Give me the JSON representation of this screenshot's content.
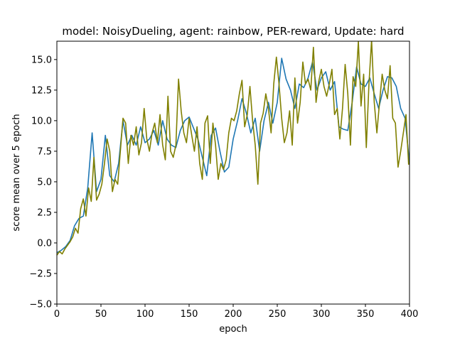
{
  "chart_data": {
    "type": "line",
    "title": "model: NoisyDueling, agent: rainbow, PER-reward, Update: hard",
    "xlabel": "epoch",
    "ylabel": "score mean over 5 epoch",
    "xlim": [
      0,
      400
    ],
    "ylim": [
      -5.0,
      16.5
    ],
    "xticks": [
      0,
      50,
      100,
      150,
      200,
      250,
      300,
      350,
      400
    ],
    "yticks": [
      -5.0,
      -2.5,
      0.0,
      2.5,
      5.0,
      7.5,
      10.0,
      12.5,
      15.0
    ],
    "ytick_labels": [
      "−5.0",
      "−2.5",
      "0.0",
      "2.5",
      "5.0",
      "7.5",
      "10.0",
      "12.5",
      "15.0"
    ],
    "grid": false,
    "legend": "none",
    "series": [
      {
        "color": "#1f77b4",
        "x": [
          0,
          5,
          10,
          15,
          20,
          25,
          30,
          35,
          40,
          45,
          50,
          55,
          60,
          65,
          70,
          75,
          80,
          85,
          90,
          95,
          100,
          105,
          110,
          115,
          120,
          125,
          130,
          135,
          140,
          145,
          150,
          155,
          160,
          165,
          170,
          175,
          180,
          185,
          190,
          195,
          200,
          205,
          210,
          215,
          220,
          225,
          230,
          235,
          240,
          245,
          250,
          255,
          260,
          265,
          270,
          275,
          280,
          285,
          290,
          295,
          300,
          305,
          310,
          315,
          320,
          325,
          330,
          335,
          340,
          345,
          350,
          355,
          360,
          365,
          370,
          375,
          380,
          385,
          390,
          395,
          400
        ],
        "y": [
          -0.8,
          -0.6,
          -0.3,
          0.2,
          1.4,
          2.0,
          2.2,
          4.5,
          9.0,
          4.2,
          5.2,
          8.8,
          5.5,
          5.0,
          6.5,
          10.0,
          8.0,
          8.8,
          8.0,
          9.5,
          8.2,
          8.5,
          9.2,
          8.0,
          10.0,
          8.5,
          8.0,
          7.8,
          9.2,
          10.0,
          10.3,
          9.4,
          8.5,
          7.0,
          5.5,
          8.8,
          9.4,
          7.5,
          5.8,
          6.2,
          8.5,
          10.0,
          11.8,
          10.6,
          9.0,
          10.2,
          7.5,
          10.0,
          11.5,
          9.8,
          11.5,
          15.1,
          13.4,
          12.5,
          11.0,
          13.0,
          12.7,
          13.5,
          14.8,
          12.5,
          13.5,
          14.0,
          12.5,
          13.2,
          9.5,
          9.3,
          9.2,
          11.5,
          14.4,
          13.0,
          12.8,
          13.5,
          12.2,
          11.0,
          12.5,
          13.6,
          13.5,
          12.8,
          11.0,
          10.2,
          6.5
        ]
      },
      {
        "color": "#808000",
        "x": [
          0,
          3,
          6,
          9,
          12,
          15,
          18,
          21,
          24,
          27,
          30,
          33,
          36,
          39,
          42,
          45,
          48,
          51,
          54,
          57,
          60,
          63,
          66,
          69,
          72,
          75,
          78,
          81,
          84,
          87,
          90,
          93,
          96,
          99,
          102,
          105,
          108,
          111,
          114,
          117,
          120,
          123,
          126,
          129,
          132,
          135,
          138,
          141,
          144,
          147,
          150,
          153,
          156,
          159,
          162,
          165,
          168,
          171,
          174,
          177,
          180,
          183,
          186,
          189,
          192,
          195,
          198,
          201,
          204,
          207,
          210,
          213,
          216,
          219,
          222,
          225,
          228,
          231,
          234,
          237,
          240,
          243,
          246,
          249,
          252,
          255,
          258,
          261,
          264,
          267,
          270,
          273,
          276,
          279,
          282,
          285,
          288,
          291,
          294,
          297,
          300,
          303,
          306,
          309,
          312,
          315,
          318,
          321,
          324,
          327,
          330,
          333,
          336,
          339,
          342,
          345,
          348,
          351,
          354,
          357,
          360,
          363,
          366,
          369,
          372,
          375,
          378,
          381,
          384,
          387,
          390,
          393,
          396,
          399
        ],
        "y": [
          -1.0,
          -0.7,
          -0.9,
          -0.5,
          -0.2,
          0.1,
          0.5,
          1.2,
          0.8,
          2.8,
          3.6,
          2.2,
          4.5,
          3.4,
          7.0,
          3.5,
          4.0,
          4.8,
          6.5,
          8.5,
          7.5,
          4.2,
          5.2,
          4.8,
          7.5,
          10.2,
          9.8,
          6.5,
          8.8,
          8.0,
          9.5,
          7.2,
          8.2,
          11.0,
          8.5,
          7.5,
          9.0,
          9.8,
          8.2,
          10.5,
          8.0,
          6.8,
          12.0,
          7.5,
          7.0,
          8.0,
          13.4,
          10.8,
          9.0,
          8.2,
          10.2,
          8.8,
          7.5,
          9.5,
          6.5,
          5.2,
          9.8,
          10.4,
          6.5,
          9.8,
          8.0,
          5.2,
          6.5,
          6.0,
          6.8,
          9.0,
          10.2,
          10.0,
          10.8,
          12.2,
          13.3,
          9.5,
          10.5,
          12.8,
          10.0,
          8.0,
          4.8,
          9.8,
          10.6,
          12.2,
          11.0,
          9.0,
          13.0,
          15.2,
          13.0,
          10.2,
          8.2,
          9.0,
          10.8,
          8.0,
          13.5,
          9.8,
          11.5,
          14.8,
          13.0,
          13.4,
          12.5,
          16.0,
          11.5,
          13.2,
          14.2,
          12.8,
          12.0,
          13.0,
          14.2,
          10.5,
          11.0,
          8.5,
          11.0,
          14.6,
          12.2,
          8.0,
          13.6,
          12.8,
          16.5,
          11.2,
          13.8,
          7.8,
          13.0,
          16.6,
          11.5,
          9.0,
          11.5,
          13.8,
          12.5,
          11.8,
          14.5,
          10.2,
          9.8,
          6.2,
          7.5,
          9.0,
          10.5,
          6.4
        ]
      }
    ]
  }
}
